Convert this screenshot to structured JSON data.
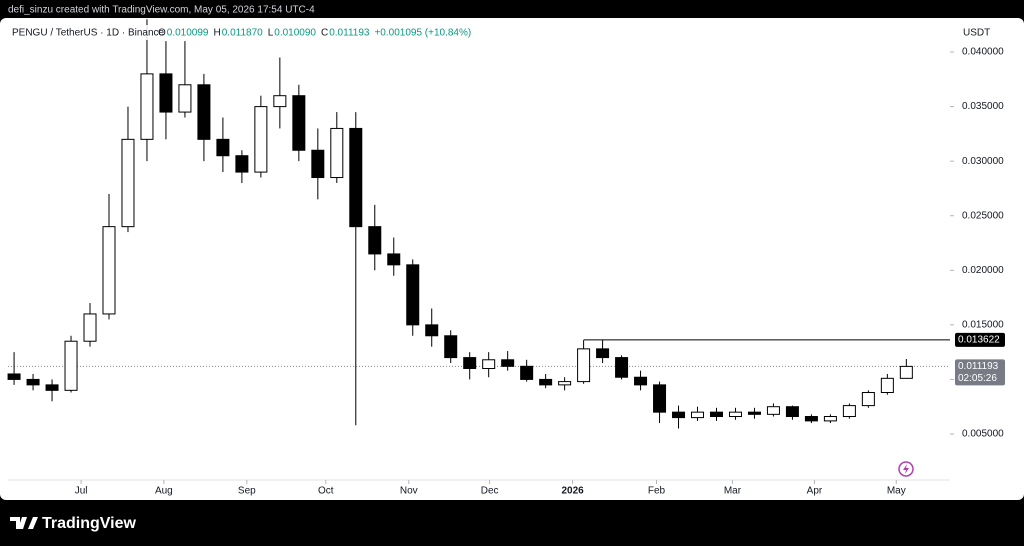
{
  "header": {
    "credit": "defi_sinzu created with TradingView.com, May 05, 2026 17:54 UTC-4",
    "symbol": "PENGU / TetherUS · 1D · Binance",
    "ohlc": [
      {
        "label": "O",
        "value": "0.010099"
      },
      {
        "label": "H",
        "value": "0.011870"
      },
      {
        "label": "L",
        "value": "0.010090"
      },
      {
        "label": "C",
        "value": "0.011193"
      }
    ],
    "change": "+0.001095 (+10.84%)"
  },
  "chart_data": {
    "type": "candlestick",
    "unit": "USDT",
    "up_color": "#ffffff",
    "down_color": "#000000",
    "edge_color": "#000000",
    "ylim": [
      -0.00105,
      0.04312
    ],
    "xlim": [
      -0.32,
      49.3
    ],
    "yticks": [
      {
        "value": 0.005,
        "label": "0.005000"
      },
      {
        "value": 0.01,
        "label": "0.010000"
      },
      {
        "value": 0.015,
        "label": "0.015000"
      },
      {
        "value": 0.02,
        "label": "0.020000"
      },
      {
        "value": 0.025,
        "label": "0.025000"
      },
      {
        "value": 0.03,
        "label": "0.030000"
      },
      {
        "value": 0.035,
        "label": "0.035000"
      },
      {
        "value": 0.04,
        "label": "0.040000"
      }
    ],
    "xticks": [
      {
        "value": 3.53,
        "label": "Jul"
      },
      {
        "value": 7.89,
        "label": "Aug"
      },
      {
        "value": 12.26,
        "label": "Sep"
      },
      {
        "value": 16.42,
        "label": "Oct"
      },
      {
        "value": 20.79,
        "label": "Nov"
      },
      {
        "value": 25.05,
        "label": "Dec"
      },
      {
        "value": 29.42,
        "label": "2026"
      },
      {
        "value": 33.84,
        "label": "Feb"
      },
      {
        "value": 37.84,
        "label": "Mar"
      },
      {
        "value": 42.16,
        "label": "Apr"
      },
      {
        "value": 46.47,
        "label": "May"
      }
    ],
    "open": [
      0.0105,
      0.01,
      0.0095,
      0.009,
      0.0135,
      0.016,
      0.024,
      0.032,
      0.038,
      0.0345,
      0.037,
      0.032,
      0.0305,
      0.029,
      0.035,
      0.036,
      0.031,
      0.0285,
      0.033,
      0.024,
      0.0215,
      0.0205,
      0.015,
      0.014,
      0.012,
      0.011,
      0.0118,
      0.0112,
      0.01,
      0.0095,
      0.0098,
      0.0128,
      0.012,
      0.0102,
      0.0095,
      0.007,
      0.0065,
      0.007,
      0.0066,
      0.007,
      0.0068,
      0.0075,
      0.0066,
      0.0062,
      0.0066,
      0.0076,
      0.0088,
      0.010099
    ],
    "high": [
      0.0125,
      0.0105,
      0.01,
      0.014,
      0.017,
      0.027,
      0.035,
      0.043,
      0.041,
      0.041,
      0.038,
      0.034,
      0.031,
      0.036,
      0.0395,
      0.037,
      0.033,
      0.0345,
      0.0345,
      0.026,
      0.023,
      0.021,
      0.0165,
      0.0145,
      0.0125,
      0.0125,
      0.0126,
      0.0118,
      0.0105,
      0.0102,
      0.0136,
      0.0136,
      0.0122,
      0.0108,
      0.0098,
      0.0076,
      0.0075,
      0.0074,
      0.0074,
      0.0074,
      0.0078,
      0.0076,
      0.0068,
      0.0068,
      0.0078,
      0.009,
      0.0105,
      0.01187
    ],
    "low": [
      0.0095,
      0.009,
      0.008,
      0.0088,
      0.013,
      0.0155,
      0.0235,
      0.03,
      0.032,
      0.034,
      0.03,
      0.029,
      0.028,
      0.0285,
      0.033,
      0.03,
      0.0265,
      0.028,
      0.0058,
      0.02,
      0.0195,
      0.014,
      0.013,
      0.0115,
      0.01,
      0.0102,
      0.0108,
      0.0098,
      0.0092,
      0.009,
      0.0096,
      0.0115,
      0.01,
      0.009,
      0.006,
      0.0055,
      0.0062,
      0.0062,
      0.0063,
      0.0064,
      0.0066,
      0.0063,
      0.006,
      0.006,
      0.0064,
      0.0074,
      0.0086,
      0.01009
    ],
    "close": [
      0.01,
      0.0095,
      0.009,
      0.0135,
      0.016,
      0.024,
      0.032,
      0.038,
      0.0345,
      0.037,
      0.032,
      0.0305,
      0.029,
      0.035,
      0.036,
      0.031,
      0.0285,
      0.033,
      0.024,
      0.0215,
      0.0205,
      0.015,
      0.014,
      0.012,
      0.011,
      0.0118,
      0.0112,
      0.01,
      0.0095,
      0.0098,
      0.0128,
      0.012,
      0.0102,
      0.0095,
      0.007,
      0.0065,
      0.007,
      0.0066,
      0.007,
      0.0068,
      0.0075,
      0.0066,
      0.0062,
      0.0066,
      0.0076,
      0.0088,
      0.0101,
      0.011193
    ],
    "level": {
      "value": 0.013622,
      "start": 30
    },
    "last_price": {
      "value": 0.011193,
      "countdown": "02:05:26"
    }
  }
}
